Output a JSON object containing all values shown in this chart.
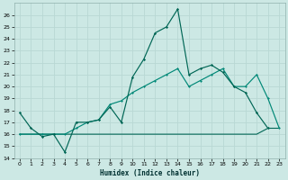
{
  "xlabel": "Humidex (Indice chaleur)",
  "background_color": "#cce8e4",
  "grid_color": "#b8d8d4",
  "line_color1": "#006655",
  "line_color2": "#008877",
  "xlim": [
    -0.5,
    23.5
  ],
  "ylim": [
    14,
    27
  ],
  "yticks": [
    14,
    15,
    16,
    17,
    18,
    19,
    20,
    21,
    22,
    23,
    24,
    25,
    26
  ],
  "xticks": [
    0,
    1,
    2,
    3,
    4,
    5,
    6,
    7,
    8,
    9,
    10,
    11,
    12,
    13,
    14,
    15,
    16,
    17,
    18,
    19,
    20,
    21,
    22,
    23
  ],
  "s1_x": [
    0,
    1,
    2,
    3,
    4,
    5,
    6,
    7,
    8,
    9,
    10,
    11,
    12,
    13,
    14,
    15,
    16,
    17,
    18,
    19,
    20,
    21,
    22
  ],
  "s1_y": [
    17.8,
    16.5,
    15.8,
    16.0,
    14.5,
    17.0,
    17.0,
    17.2,
    18.3,
    17.0,
    20.8,
    22.3,
    24.5,
    25.0,
    26.5,
    21.0,
    21.5,
    21.8,
    21.2,
    20.0,
    19.5,
    17.8,
    16.5
  ],
  "s2_x": [
    0,
    2,
    3,
    4,
    5,
    6,
    7,
    8,
    9,
    10,
    11,
    12,
    13,
    14,
    15,
    16,
    17,
    18,
    19,
    20,
    21,
    22,
    23
  ],
  "s2_y": [
    16.0,
    16.0,
    16.0,
    16.0,
    16.5,
    17.0,
    17.2,
    18.5,
    18.8,
    19.5,
    20.0,
    20.5,
    21.0,
    21.5,
    20.0,
    20.5,
    21.0,
    21.5,
    20.0,
    20.0,
    21.0,
    19.0,
    16.5
  ],
  "s3_x": [
    0,
    2,
    4,
    5,
    6,
    7,
    8,
    9,
    10,
    14,
    15,
    16,
    17,
    18,
    19,
    20,
    21,
    22,
    23
  ],
  "s3_y": [
    16.0,
    16.0,
    16.0,
    16.0,
    16.0,
    16.0,
    16.0,
    16.0,
    16.0,
    16.0,
    16.0,
    16.0,
    16.0,
    16.0,
    16.0,
    16.0,
    16.0,
    16.5,
    16.5
  ]
}
